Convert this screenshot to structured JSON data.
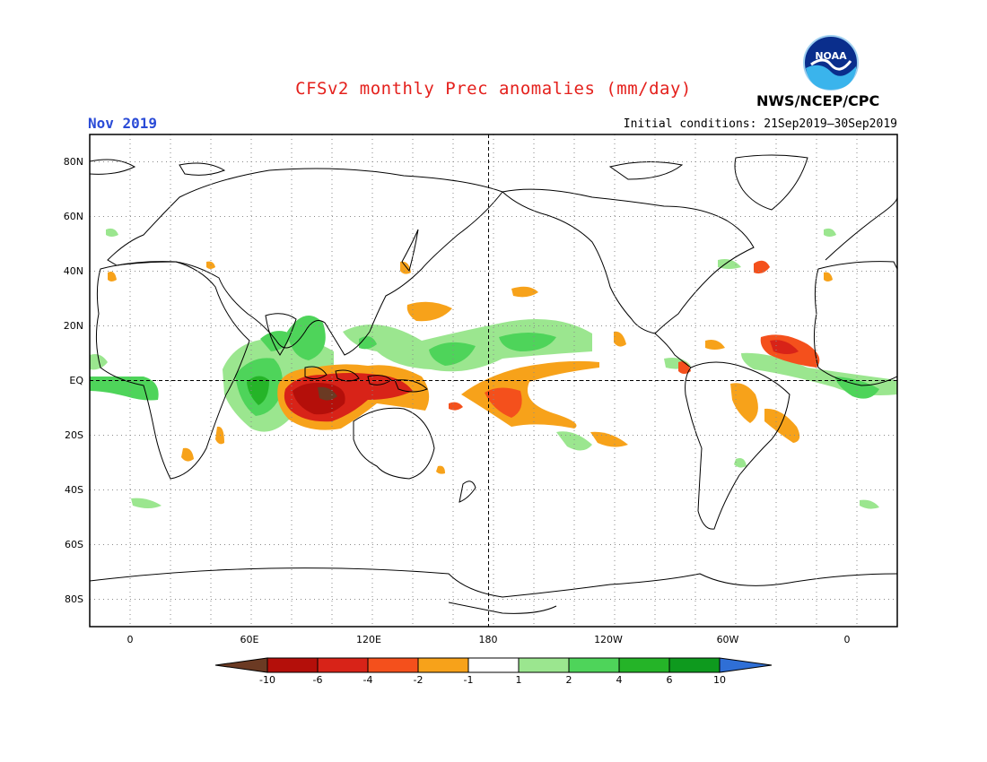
{
  "header": {
    "title": "CFSv2 monthly Prec anomalies (mm/day)",
    "month": "Nov 2019",
    "initial_conditions": "Initial conditions: 21Sep2019–30Sep2019",
    "agency": "NWS/NCEP/CPC",
    "logo_text": "NOAA"
  },
  "map": {
    "projection": "equirectangular",
    "lon_range": [
      -20,
      380
    ],
    "lat_range": [
      -90,
      90
    ],
    "lat_ticks": [
      "80N",
      "60N",
      "40N",
      "20N",
      "EQ",
      "20S",
      "40S",
      "60S",
      "80S"
    ],
    "lon_ticks": [
      "0",
      "60E",
      "120E",
      "180",
      "120W",
      "60W",
      "0"
    ],
    "dateline_dashed": true,
    "equator_dashed": true,
    "grid": "dotted"
  },
  "colorbar": {
    "tick_labels": [
      "-10",
      "-6",
      "-4",
      "-2",
      "-1",
      "1",
      "2",
      "4",
      "6",
      "10"
    ],
    "colors": [
      "#6b3a23",
      "#b40f0a",
      "#d82318",
      "#f4501c",
      "#f7a21a",
      "#ffffff",
      "#9be68f",
      "#4ed45a",
      "#25b428",
      "#0e9a1e",
      "#2f6fd6"
    ]
  }
}
